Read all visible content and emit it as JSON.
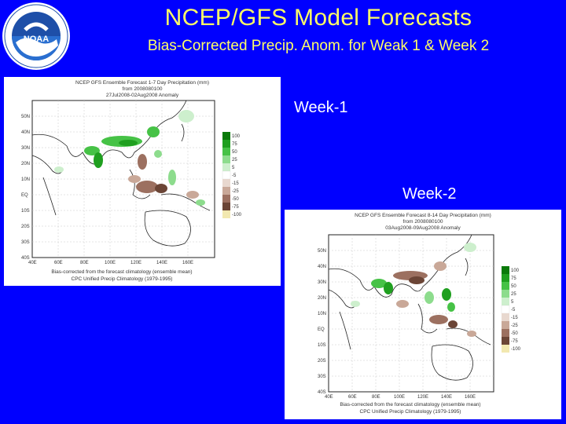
{
  "slide": {
    "title": "NCEP/GFS Model Forecasts",
    "subtitle": "Bias-Corrected Precip. Anom. for Weak 1 & Week 2",
    "logo_text": "NOAA",
    "colors": {
      "background": "#0000ff",
      "title": "#ffff66",
      "label": "#ffffff"
    }
  },
  "week1": {
    "label": "Week-1",
    "map_header": [
      "NCEP GFS Ensemble Forecast 1-7 Day Precipitation (mm)",
      "from 2008080100",
      "27Jul2008-02Aug2008 Anomaly"
    ],
    "lat_labels": [
      "50N",
      "40N",
      "30N",
      "20N",
      "10N",
      "EQ",
      "10S",
      "20S",
      "30S",
      "40S"
    ],
    "lon_labels": [
      "40E",
      "60E",
      "80E",
      "100E",
      "120E",
      "140E",
      "160E"
    ],
    "legend": [
      "100",
      "75",
      "50",
      "25",
      "5",
      "-5",
      "-15",
      "-25",
      "-50",
      "-75",
      "-100"
    ],
    "footer": [
      "Bias-corrected from the forecast climatology (ensemble mean)",
      "CPC Unified Precip Climatology (1979-1995)"
    ]
  },
  "week2": {
    "label": "Week-2",
    "map_header": [
      "NCEP GFS Ensemble Forecast 8-14 Day Precipitation (mm)",
      "from 2008080100",
      "03Aug2008-09Aug2008 Anomaly"
    ],
    "lat_labels": [
      "50N",
      "40N",
      "30N",
      "20N",
      "10N",
      "EQ",
      "10S",
      "20S",
      "30S",
      "40S"
    ],
    "lon_labels": [
      "40E",
      "60E",
      "80E",
      "100E",
      "120E",
      "140E",
      "160E"
    ],
    "legend": [
      "100",
      "75",
      "50",
      "25",
      "5",
      "-5",
      "-15",
      "-25",
      "-50",
      "-75",
      "-100"
    ],
    "footer": [
      "Bias-corrected from the forecast climatology (ensemble mean)",
      "CPC Unified Precip Climatology (1979-1995)"
    ]
  },
  "legend_colors": [
    "#0a7a0a",
    "#1f9f1f",
    "#46c246",
    "#8ddc8d",
    "#cdefcd",
    "#ffffff",
    "#e8d8cf",
    "#c9a898",
    "#9c7060",
    "#6b4536",
    "#f2e8b0"
  ]
}
